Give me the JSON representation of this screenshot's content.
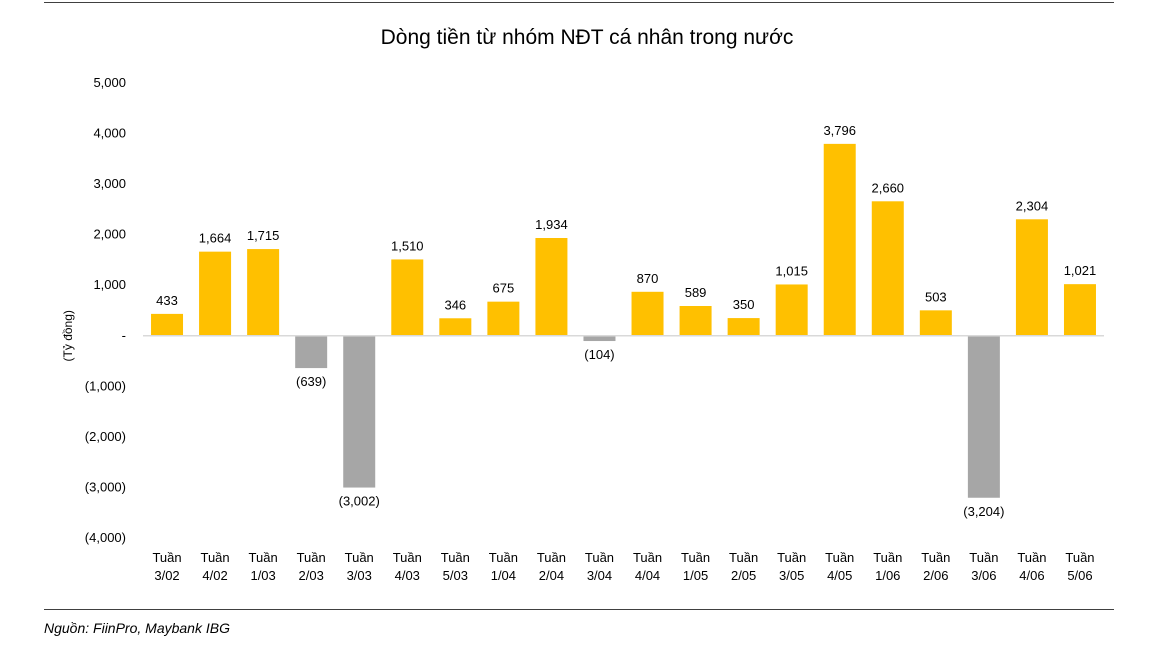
{
  "title": "Dòng tiền từ nhóm NĐT cá nhân trong nước",
  "source": "Nguồn: FiinPro, Maybank IBG",
  "colors": {
    "positive": "#FFC000",
    "negative": "#A6A6A6",
    "axis": "#D9D9D9"
  },
  "chart_data": {
    "type": "bar",
    "title": "Dòng tiền từ nhóm NĐT cá nhân trong nước",
    "xlabel": "",
    "ylabel": "(Tỷ đồng)",
    "ylim": [
      -4000,
      5000
    ],
    "yticks": [
      5000,
      4000,
      3000,
      2000,
      1000,
      0,
      -1000,
      -2000,
      -3000,
      -4000
    ],
    "ytick_labels": [
      "5,000",
      "4,000",
      "3,000",
      "2,000",
      "1,000",
      "-",
      "(1,000)",
      "(2,000)",
      "(3,000)",
      "(4,000)"
    ],
    "grid": false,
    "legend": "none",
    "categories": [
      [
        "Tuần",
        "3/02"
      ],
      [
        "Tuần",
        "4/02"
      ],
      [
        "Tuần",
        "1/03"
      ],
      [
        "Tuần",
        "2/03"
      ],
      [
        "Tuần",
        "3/03"
      ],
      [
        "Tuần",
        "4/03"
      ],
      [
        "Tuần",
        "5/03"
      ],
      [
        "Tuần",
        "1/04"
      ],
      [
        "Tuần",
        "2/04"
      ],
      [
        "Tuần",
        "3/04"
      ],
      [
        "Tuần",
        "4/04"
      ],
      [
        "Tuần",
        "1/05"
      ],
      [
        "Tuần",
        "2/05"
      ],
      [
        "Tuần",
        "3/05"
      ],
      [
        "Tuần",
        "4/05"
      ],
      [
        "Tuần",
        "1/06"
      ],
      [
        "Tuần",
        "2/06"
      ],
      [
        "Tuần",
        "3/06"
      ],
      [
        "Tuần",
        "4/06"
      ],
      [
        "Tuần",
        "5/06"
      ]
    ],
    "values": [
      433,
      1664,
      1715,
      -639,
      -3002,
      1510,
      346,
      675,
      1934,
      -104,
      870,
      589,
      350,
      1015,
      3796,
      2660,
      503,
      -3204,
      2304,
      1021
    ],
    "labels": [
      "433",
      "1,664",
      "1,715",
      "(639)",
      "(3,002)",
      "1,510",
      "346",
      "675",
      "1,934",
      "(104)",
      "870",
      "589",
      "350",
      "1,015",
      "3,796",
      "2,660",
      "503",
      "(3,204)",
      "2,304",
      "1,021"
    ]
  }
}
